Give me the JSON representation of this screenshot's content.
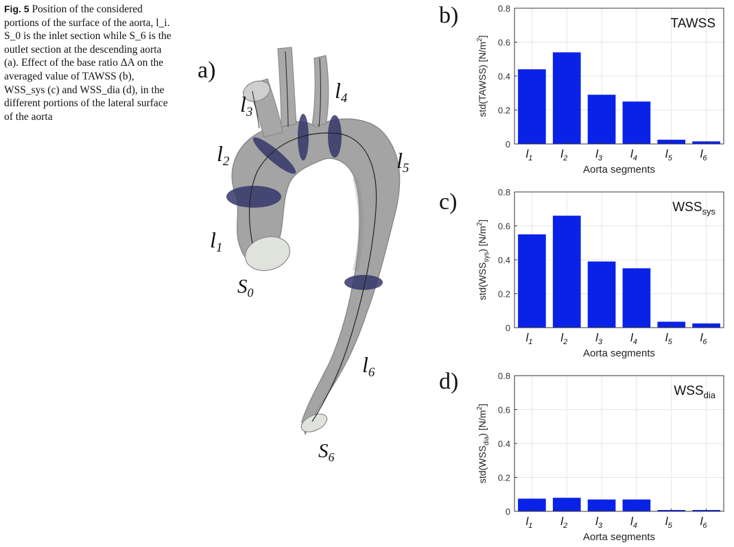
{
  "caption": {
    "fig_label": "Fig. 5",
    "text": "Position of the considered portions of the surface of the aorta, l_i. S_0 is the inlet section while S_6 is the outlet section at the descending aorta (a). Effect of the base ratio ΔA on the averaged value of TAWSS (b), WSS_sys (c) and WSS_dia (d), in the different portions of the lateral surface of the aorta"
  },
  "panels": {
    "a": "a)",
    "b": "b)",
    "c": "c)",
    "d": "d)"
  },
  "aorta": {
    "segment_labels": [
      "l",
      "l",
      "l",
      "l",
      "l",
      "l"
    ],
    "segment_subscripts": [
      "1",
      "2",
      "3",
      "4",
      "5",
      "6"
    ],
    "section_labels": [
      "S",
      "S"
    ],
    "section_subscripts": [
      "0",
      "6"
    ]
  },
  "chart_data": [
    {
      "type": "bar",
      "panel": "b",
      "title": "TAWSS",
      "title_main": "TAWSS",
      "title_sub": "",
      "categories": [
        "l1",
        "l2",
        "l3",
        "l4",
        "l5",
        "l6"
      ],
      "category_subscripts": [
        "1",
        "2",
        "3",
        "4",
        "5",
        "6"
      ],
      "values": [
        0.44,
        0.54,
        0.29,
        0.25,
        0.025,
        0.015
      ],
      "xlabel": "Aorta segments",
      "ylabel": "std(TAWSS) [N/m2]",
      "ylim": [
        0,
        0.8
      ],
      "yticks": [
        "0",
        "0.2",
        "0.4",
        "0.6",
        "0.8"
      ],
      "grid": true,
      "bar_color": "#0a22e8"
    },
    {
      "type": "bar",
      "panel": "c",
      "title": "WSSsys",
      "title_main": "WSS",
      "title_sub": "sys",
      "categories": [
        "l1",
        "l2",
        "l3",
        "l4",
        "l5",
        "l6"
      ],
      "category_subscripts": [
        "1",
        "2",
        "3",
        "4",
        "5",
        "6"
      ],
      "values": [
        0.55,
        0.66,
        0.39,
        0.35,
        0.035,
        0.025
      ],
      "xlabel": "Aorta segments",
      "ylabel": "std(WSSsys) [N/m2]",
      "ylim": [
        0,
        0.8
      ],
      "yticks": [
        "0",
        "0.2",
        "0.4",
        "0.6",
        "0.8"
      ],
      "grid": true,
      "bar_color": "#0a22e8"
    },
    {
      "type": "bar",
      "panel": "d",
      "title": "WSSdia",
      "title_main": "WSS",
      "title_sub": "dia",
      "categories": [
        "l1",
        "l2",
        "l3",
        "l4",
        "l5",
        "l6"
      ],
      "category_subscripts": [
        "1",
        "2",
        "3",
        "4",
        "5",
        "6"
      ],
      "values": [
        0.075,
        0.08,
        0.07,
        0.07,
        0.008,
        0.008
      ],
      "xlabel": "Aorta segments",
      "ylabel": "std(WSSdia) [N/m2]",
      "ylim": [
        0,
        0.8
      ],
      "yticks": [
        "0",
        "0.2",
        "0.4",
        "0.6",
        "0.8"
      ],
      "grid": true,
      "bar_color": "#0a22e8"
    }
  ]
}
